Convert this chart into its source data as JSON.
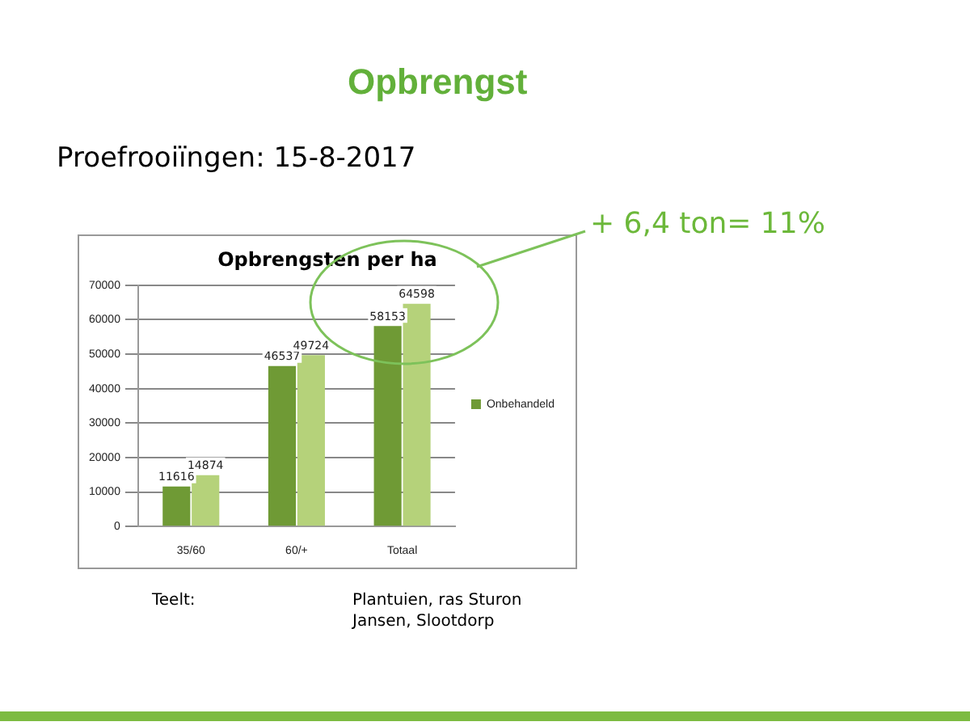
{
  "chart_data": {
    "type": "bar",
    "title": "Opbrengsten per ha",
    "categories": [
      "35/60",
      "60/+",
      "Totaal"
    ],
    "series": [
      {
        "name": "Onbehandeld",
        "color": "#6f9a35",
        "values": [
          11616,
          46537,
          58153
        ]
      },
      {
        "color": "#b5d27a",
        "values": [
          14874,
          49724,
          64598
        ]
      }
    ],
    "ylim": [
      0,
      70000
    ],
    "yticks": [
      0,
      10000,
      20000,
      30000,
      40000,
      50000,
      60000,
      70000
    ],
    "grid": "y",
    "legend": "right",
    "data_labels": true,
    "annotations": [
      "Opbrengst",
      "Proefrooiïngen: 15-8-2017",
      "+ 6,4 ton= 11%",
      "Teelt:",
      "Plantuien, ras Sturon",
      "Jansen, Slootdorp"
    ]
  }
}
